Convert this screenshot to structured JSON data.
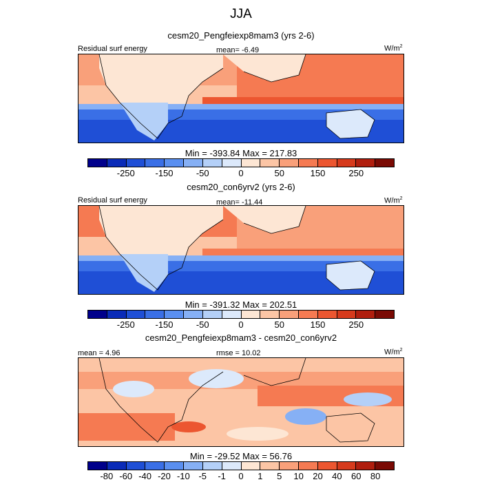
{
  "figure_title": "JJA",
  "units_label": "W/m",
  "units_power": "2",
  "panels": [
    {
      "subtitle": "cesm20_Pengfeiexp8mam3 (yrs 2-6)",
      "left_label": "Residual surf energy",
      "center_label": "mean=  -6.49",
      "minmax": "Min = -393.84 Max = 217.83"
    },
    {
      "subtitle": "cesm20_con6yrv2 (yrs 2-6)",
      "left_label": "Residual surf energy",
      "center_label": "mean= -11.44",
      "minmax": "Min = -391.32 Max = 202.51"
    },
    {
      "subtitle": "cesm20_Pengfeiexp8mam3 - cesm20_con6yrv2",
      "left_label": "mean =   4.96",
      "center_label": "rmse =  10.02",
      "minmax": "Min = -29.52 Max =  56.76"
    }
  ],
  "colorbar_abs": {
    "colors": [
      "#00008b",
      "#0a2bb8",
      "#1f4fd6",
      "#3a6fe6",
      "#5a8ff0",
      "#86b0f5",
      "#b4d0f8",
      "#dce9fb",
      "#fde6d4",
      "#fcc5a5",
      "#f9a07a",
      "#f57a52",
      "#ec5630",
      "#d63a1c",
      "#b01e0e",
      "#7a0a04"
    ],
    "ticks": [
      "-250",
      "-150",
      "-50",
      "0",
      "50",
      "150",
      "250"
    ]
  },
  "colorbar_diff": {
    "colors": [
      "#00008b",
      "#0a2bb8",
      "#1f4fd6",
      "#3a6fe6",
      "#5a8ff0",
      "#86b0f5",
      "#b4d0f8",
      "#dce9fb",
      "#fde6d4",
      "#fcc5a5",
      "#f9a07a",
      "#f57a52",
      "#ec5630",
      "#d63a1c",
      "#b01e0e",
      "#7a0a04"
    ],
    "ticks": [
      "-80",
      "-60",
      "-40",
      "-20",
      "-10",
      "-5",
      "-1",
      "0",
      "1",
      "5",
      "10",
      "20",
      "40",
      "60",
      "80"
    ]
  }
}
